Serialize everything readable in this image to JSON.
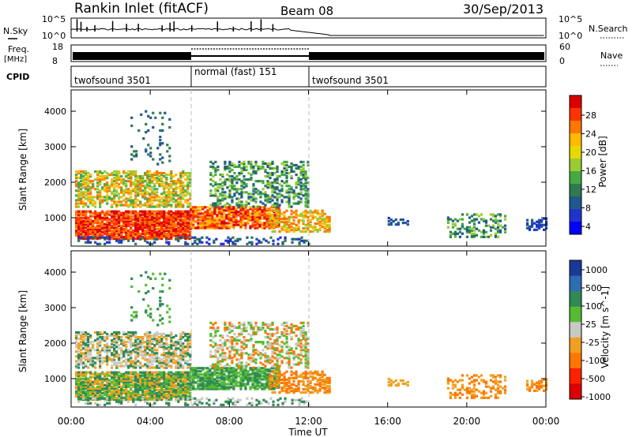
{
  "header": {
    "title": "Rankin Inlet (fitACF)",
    "beam": "Beam 08",
    "date": "30/Sep/2013"
  },
  "info_panels": {
    "nsky_label": "N.Sky",
    "nsky_ticks": [
      "10^5",
      "10^0"
    ],
    "nsearch_label": "N.Search",
    "nsearch_ticks": [
      "10^5",
      "10^0"
    ],
    "freq_label": "Freq.",
    "freq_unit": "[MHz]",
    "freq_ticks": [
      "18",
      "8"
    ],
    "nave_label": "Nave",
    "nave_ticks": [
      "60",
      "0"
    ],
    "cpid_label": "CPID",
    "cpid_segments": [
      {
        "label": "twofsound 3501",
        "start_hour": 0,
        "end_hour": 6
      },
      {
        "label": "normal (fast) 151",
        "start_hour": 6,
        "end_hour": 12
      },
      {
        "label": "twofsound 3501",
        "start_hour": 12,
        "end_hour": 24
      }
    ]
  },
  "chart_data": [
    {
      "type": "heatmap",
      "name": "power",
      "xlabel": "Time UT",
      "ylabel": "Slant Range [km]",
      "x_ticks": [
        "00:00",
        "04:00",
        "08:00",
        "12:00",
        "16:00",
        "20:00",
        "00:00"
      ],
      "x_tick_hours": [
        0,
        4,
        8,
        12,
        16,
        20,
        24
      ],
      "xlim": [
        0,
        24
      ],
      "ylim": [
        200,
        4600
      ],
      "y_ticks": [
        1000,
        2000,
        3000,
        4000
      ],
      "colorbar_label": "Power [dB]",
      "colorbar_ticks": [
        "28",
        "24",
        "20",
        "16",
        "12",
        "8",
        "4"
      ],
      "colorbar_colors": [
        "#dd0000",
        "#ff3300",
        "#ff7700",
        "#ffbb00",
        "#e6d800",
        "#99cc33",
        "#44aa44",
        "#2f7a50",
        "#1e5a8c",
        "#2233cc",
        "#0000ff"
      ]
    },
    {
      "type": "heatmap",
      "name": "velocity",
      "xlabel": "Time UT",
      "ylabel": "Slant Range [km]",
      "x_ticks": [
        "00:00",
        "04:00",
        "08:00",
        "12:00",
        "16:00",
        "20:00",
        "00:00"
      ],
      "x_tick_hours": [
        0,
        4,
        8,
        12,
        16,
        20,
        24
      ],
      "xlim": [
        0,
        24
      ],
      "ylim": [
        200,
        4600
      ],
      "y_ticks": [
        1000,
        2000,
        3000,
        4000
      ],
      "colorbar_label": "Velocity [m s^-1]",
      "colorbar_ticks": [
        "1000",
        "500",
        "100",
        "25",
        "-25",
        "-100",
        "-500",
        "-1000"
      ],
      "colorbar_colors": [
        "#1a3a99",
        "#2e6db4",
        "#2f8a55",
        "#55bb33",
        "#c8c8c4",
        "#f0a020",
        "#ff7700",
        "#ff2200",
        "#dd0000"
      ]
    }
  ]
}
